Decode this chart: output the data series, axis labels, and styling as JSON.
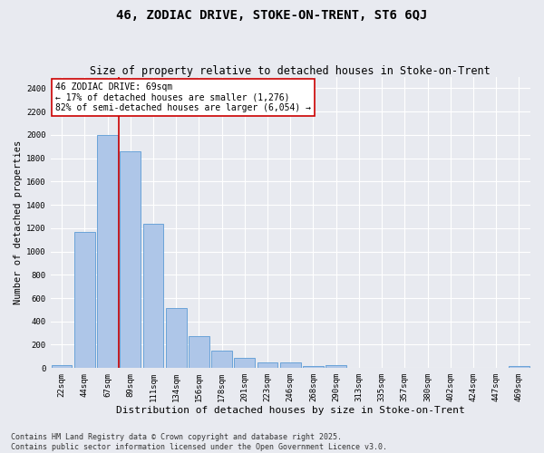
{
  "title": "46, ZODIAC DRIVE, STOKE-ON-TRENT, ST6 6QJ",
  "subtitle": "Size of property relative to detached houses in Stoke-on-Trent",
  "xlabel": "Distribution of detached houses by size in Stoke-on-Trent",
  "ylabel": "Number of detached properties",
  "categories": [
    "22sqm",
    "44sqm",
    "67sqm",
    "89sqm",
    "111sqm",
    "134sqm",
    "156sqm",
    "178sqm",
    "201sqm",
    "223sqm",
    "246sqm",
    "268sqm",
    "290sqm",
    "313sqm",
    "335sqm",
    "357sqm",
    "380sqm",
    "402sqm",
    "424sqm",
    "447sqm",
    "469sqm"
  ],
  "values": [
    25,
    1170,
    2000,
    1860,
    1240,
    515,
    275,
    150,
    90,
    45,
    45,
    15,
    25,
    5,
    5,
    2,
    5,
    2,
    2,
    2,
    15
  ],
  "bar_color": "#aec6e8",
  "bar_edge_color": "#5b9bd5",
  "background_color": "#e8eaf0",
  "grid_color": "#ffffff",
  "vline_color": "#cc0000",
  "annotation_text": "46 ZODIAC DRIVE: 69sqm\n← 17% of detached houses are smaller (1,276)\n82% of semi-detached houses are larger (6,054) →",
  "annotation_box_color": "#ffffff",
  "annotation_box_edge_color": "#cc0000",
  "ylim": [
    0,
    2500
  ],
  "yticks": [
    0,
    200,
    400,
    600,
    800,
    1000,
    1200,
    1400,
    1600,
    1800,
    2000,
    2200,
    2400
  ],
  "footer_line1": "Contains HM Land Registry data © Crown copyright and database right 2025.",
  "footer_line2": "Contains public sector information licensed under the Open Government Licence v3.0.",
  "title_fontsize": 10,
  "subtitle_fontsize": 8.5,
  "xlabel_fontsize": 8,
  "ylabel_fontsize": 7.5,
  "tick_fontsize": 6.5,
  "annotation_fontsize": 7,
  "footer_fontsize": 6
}
